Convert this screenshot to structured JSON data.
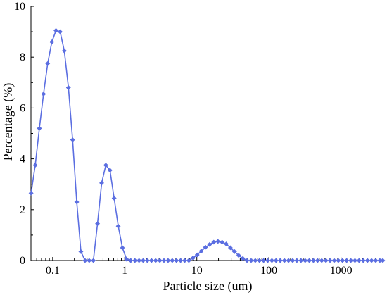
{
  "chart_data": {
    "type": "line",
    "xlabel": "Particle size (um)",
    "ylabel": "Percentage (%)",
    "xscale": "log",
    "xlim": [
      0.05,
      3800
    ],
    "ylim": [
      0,
      10
    ],
    "yticks": [
      0,
      2,
      4,
      6,
      8,
      10
    ],
    "xticks": [
      0.1,
      1,
      10,
      100,
      1000
    ],
    "xtick_labels": [
      "0.1",
      "1",
      "10",
      "100",
      "1000"
    ],
    "grid": false,
    "legend": "none",
    "series": [
      {
        "color": "#5b6ee1",
        "marker": "diamond",
        "x": [
          0.0502,
          0.0573,
          0.0654,
          0.0747,
          0.0853,
          0.0974,
          0.1112,
          0.127,
          0.145,
          0.1656,
          0.1891,
          0.2159,
          0.2465,
          0.2815,
          0.3214,
          0.367,
          0.419,
          0.4785,
          0.5463,
          0.6238,
          0.7123,
          0.8134,
          0.9288,
          1.0605,
          1.2109,
          1.3827,
          1.5788,
          1.8028,
          2.0585,
          2.3505,
          2.6839,
          3.0647,
          3.4994,
          3.9958,
          4.5626,
          5.2098,
          5.9488,
          6.7926,
          7.7562,
          8.8564,
          10.1127,
          11.5472,
          13.1852,
          15.0555,
          17.1912,
          19.6297,
          22.4142,
          25.5937,
          29.2242,
          33.3696,
          38.103,
          43.508,
          49.68,
          56.73,
          64.77,
          73.96,
          84.45,
          96.43,
          110.1,
          125.7,
          143.6,
          163.9,
          187.2,
          213.7,
          244.1,
          278.7,
          318.2,
          363.4,
          414.9,
          473.8,
          541,
          617.7,
          705.4,
          805.4,
          919.7,
          1050,
          1199,
          1369,
          1563,
          1785,
          2038,
          2327,
          2658,
          3034,
          3465,
          3800
        ],
        "y": [
          2.65,
          3.75,
          5.2,
          6.55,
          7.75,
          8.6,
          9.05,
          9.0,
          8.25,
          6.8,
          4.75,
          2.3,
          0.35,
          0.0,
          0.0,
          0.0,
          1.45,
          3.05,
          3.75,
          3.55,
          2.45,
          1.35,
          0.5,
          0.05,
          0.0,
          0.0,
          0.0,
          0.0,
          0.0,
          0.0,
          0.0,
          0.0,
          0.0,
          0.0,
          0.0,
          0.0,
          0.0,
          0.0,
          0.0,
          0.1,
          0.22,
          0.37,
          0.52,
          0.63,
          0.72,
          0.75,
          0.72,
          0.65,
          0.5,
          0.35,
          0.2,
          0.08,
          0.0,
          0.0,
          0.0,
          0.0,
          0.0,
          0.0,
          0.0,
          0.0,
          0.0,
          0.0,
          0.0,
          0.0,
          0.0,
          0.0,
          0.0,
          0.0,
          0.0,
          0.0,
          0.0,
          0.0,
          0.0,
          0.0,
          0.0,
          0.0,
          0.0,
          0.0,
          0.0,
          0.0,
          0.0,
          0.0,
          0.0,
          0.0,
          0.0,
          0.0
        ]
      }
    ]
  }
}
